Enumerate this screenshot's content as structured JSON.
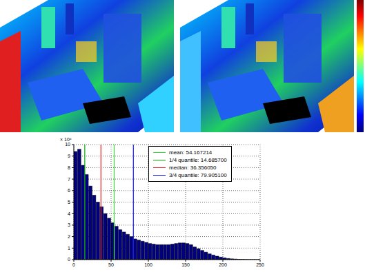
{
  "chart_data": {
    "type": "histogram",
    "bins": [
      0,
      5,
      10,
      15,
      20,
      25,
      30,
      35,
      40,
      45,
      50,
      55,
      60,
      65,
      70,
      75,
      80,
      85,
      90,
      95,
      100,
      105,
      110,
      115,
      120,
      125,
      130,
      135,
      140,
      145,
      150,
      155,
      160,
      165,
      170,
      175,
      180,
      185,
      190,
      195,
      200,
      205,
      210,
      215,
      220,
      225,
      230,
      235,
      240,
      245,
      250
    ],
    "values": [
      9.4,
      9.6,
      8.2,
      7.4,
      6.4,
      5.6,
      5.0,
      4.6,
      4.0,
      3.6,
      3.2,
      2.9,
      2.6,
      2.4,
      2.2,
      2.0,
      1.8,
      1.7,
      1.6,
      1.5,
      1.4,
      1.35,
      1.3,
      1.3,
      1.3,
      1.3,
      1.35,
      1.4,
      1.45,
      1.45,
      1.4,
      1.3,
      1.1,
      0.95,
      0.8,
      0.65,
      0.5,
      0.4,
      0.3,
      0.22,
      0.15,
      0.1,
      0.07,
      0.05,
      0.03,
      0.02,
      0.01,
      0.005,
      0.003,
      0.002
    ],
    "color": "#000080",
    "xlim": [
      0,
      250
    ],
    "xticks": [
      0,
      50,
      100,
      150,
      200,
      250
    ],
    "ylim": [
      0,
      10
    ],
    "yticks": [
      0,
      1,
      2,
      3,
      4,
      5,
      6,
      7,
      8,
      9,
      10
    ],
    "grid": true,
    "legend": "upper right",
    "annotations": [
      "× 10⁴"
    ],
    "reference_lines": [
      {
        "label": "mean: 54.167214",
        "x": 54.167214,
        "color": "#33dd33"
      },
      {
        "label": "1/4 quantile: 14.685700",
        "x": 14.6857,
        "color": "#00aa00"
      },
      {
        "label": "median: 36.356050",
        "x": 36.35605,
        "color": "#ee2222"
      },
      {
        "label": "3/4 quantile: 79.905100",
        "x": 79.9051,
        "color": "#1a1aee"
      }
    ]
  }
}
